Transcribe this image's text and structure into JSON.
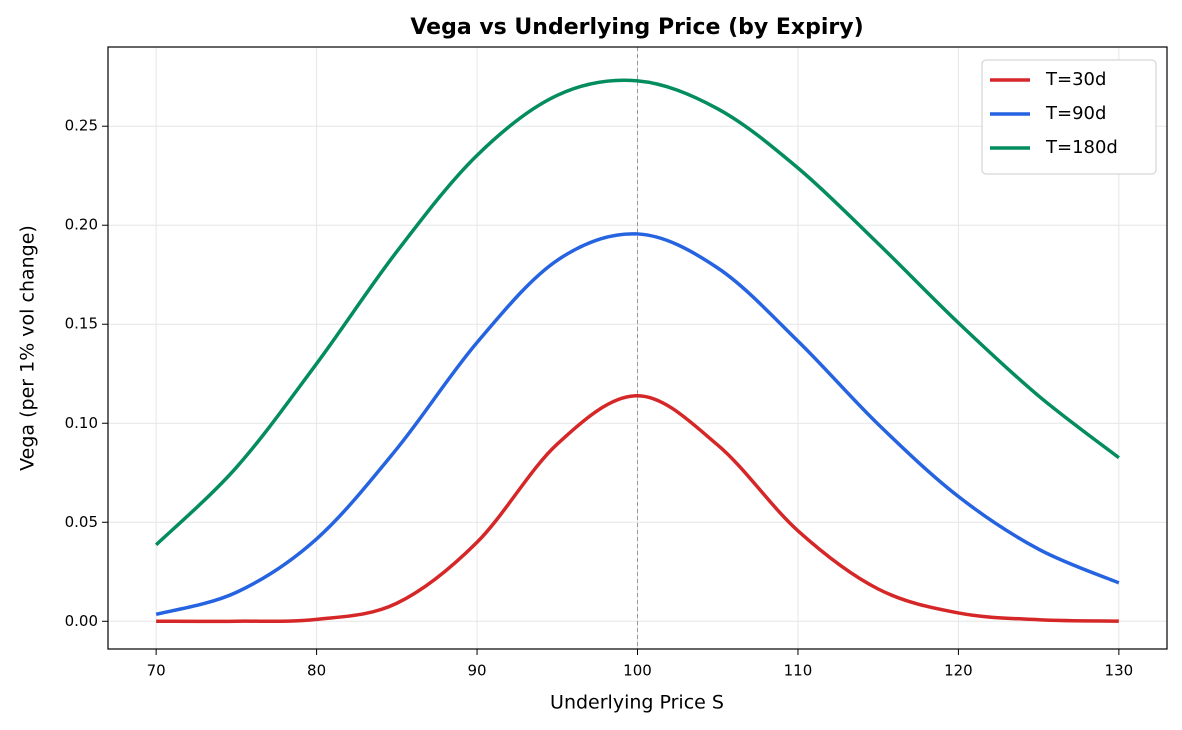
{
  "chart_data": {
    "type": "line",
    "title": "Vega vs Underlying Price (by Expiry)",
    "x_label": "Underlying Price S",
    "y_label": "Vega (per 1% vol change)",
    "x": [
      70,
      75,
      80,
      85,
      90,
      95,
      100,
      105,
      110,
      115,
      120,
      125,
      130
    ],
    "series": [
      {
        "name": "T=30d",
        "color": "#d62728",
        "values": [
          0.0,
          4e-05,
          0.00096,
          0.0091,
          0.0399,
          0.0895,
          0.1139,
          0.089,
          0.0457,
          0.0163,
          0.0042,
          0.0008,
          0.0001
        ]
      },
      {
        "name": "T=90d",
        "color": "#2563e0",
        "values": [
          0.0035,
          0.0146,
          0.0416,
          0.0871,
          0.1408,
          0.1823,
          0.1956,
          0.1784,
          0.1415,
          0.0995,
          0.063,
          0.0364,
          0.0194
        ]
      },
      {
        "name": "T=180d",
        "color": "#038c5f",
        "values": [
          0.0386,
          0.0777,
          0.1301,
          0.1867,
          0.2353,
          0.2656,
          0.2729,
          0.2588,
          0.2289,
          0.1907,
          0.1507,
          0.1138,
          0.0826
        ]
      }
    ],
    "vline": 100,
    "xlim": [
      67,
      133
    ],
    "ylim": [
      -0.014,
      0.29
    ],
    "xticks": [
      70,
      80,
      90,
      100,
      110,
      120,
      130
    ],
    "yticks": [
      {
        "value": 0,
        "label": "0.00"
      },
      {
        "value": 0.05,
        "label": "0.05"
      },
      {
        "value": 0.1,
        "label": "0.10"
      },
      {
        "value": 0.15,
        "label": "0.15"
      },
      {
        "value": 0.2,
        "label": "0.20"
      },
      {
        "value": 0.25,
        "label": "0.25"
      }
    ],
    "grid": true,
    "legend": "upper-right"
  }
}
